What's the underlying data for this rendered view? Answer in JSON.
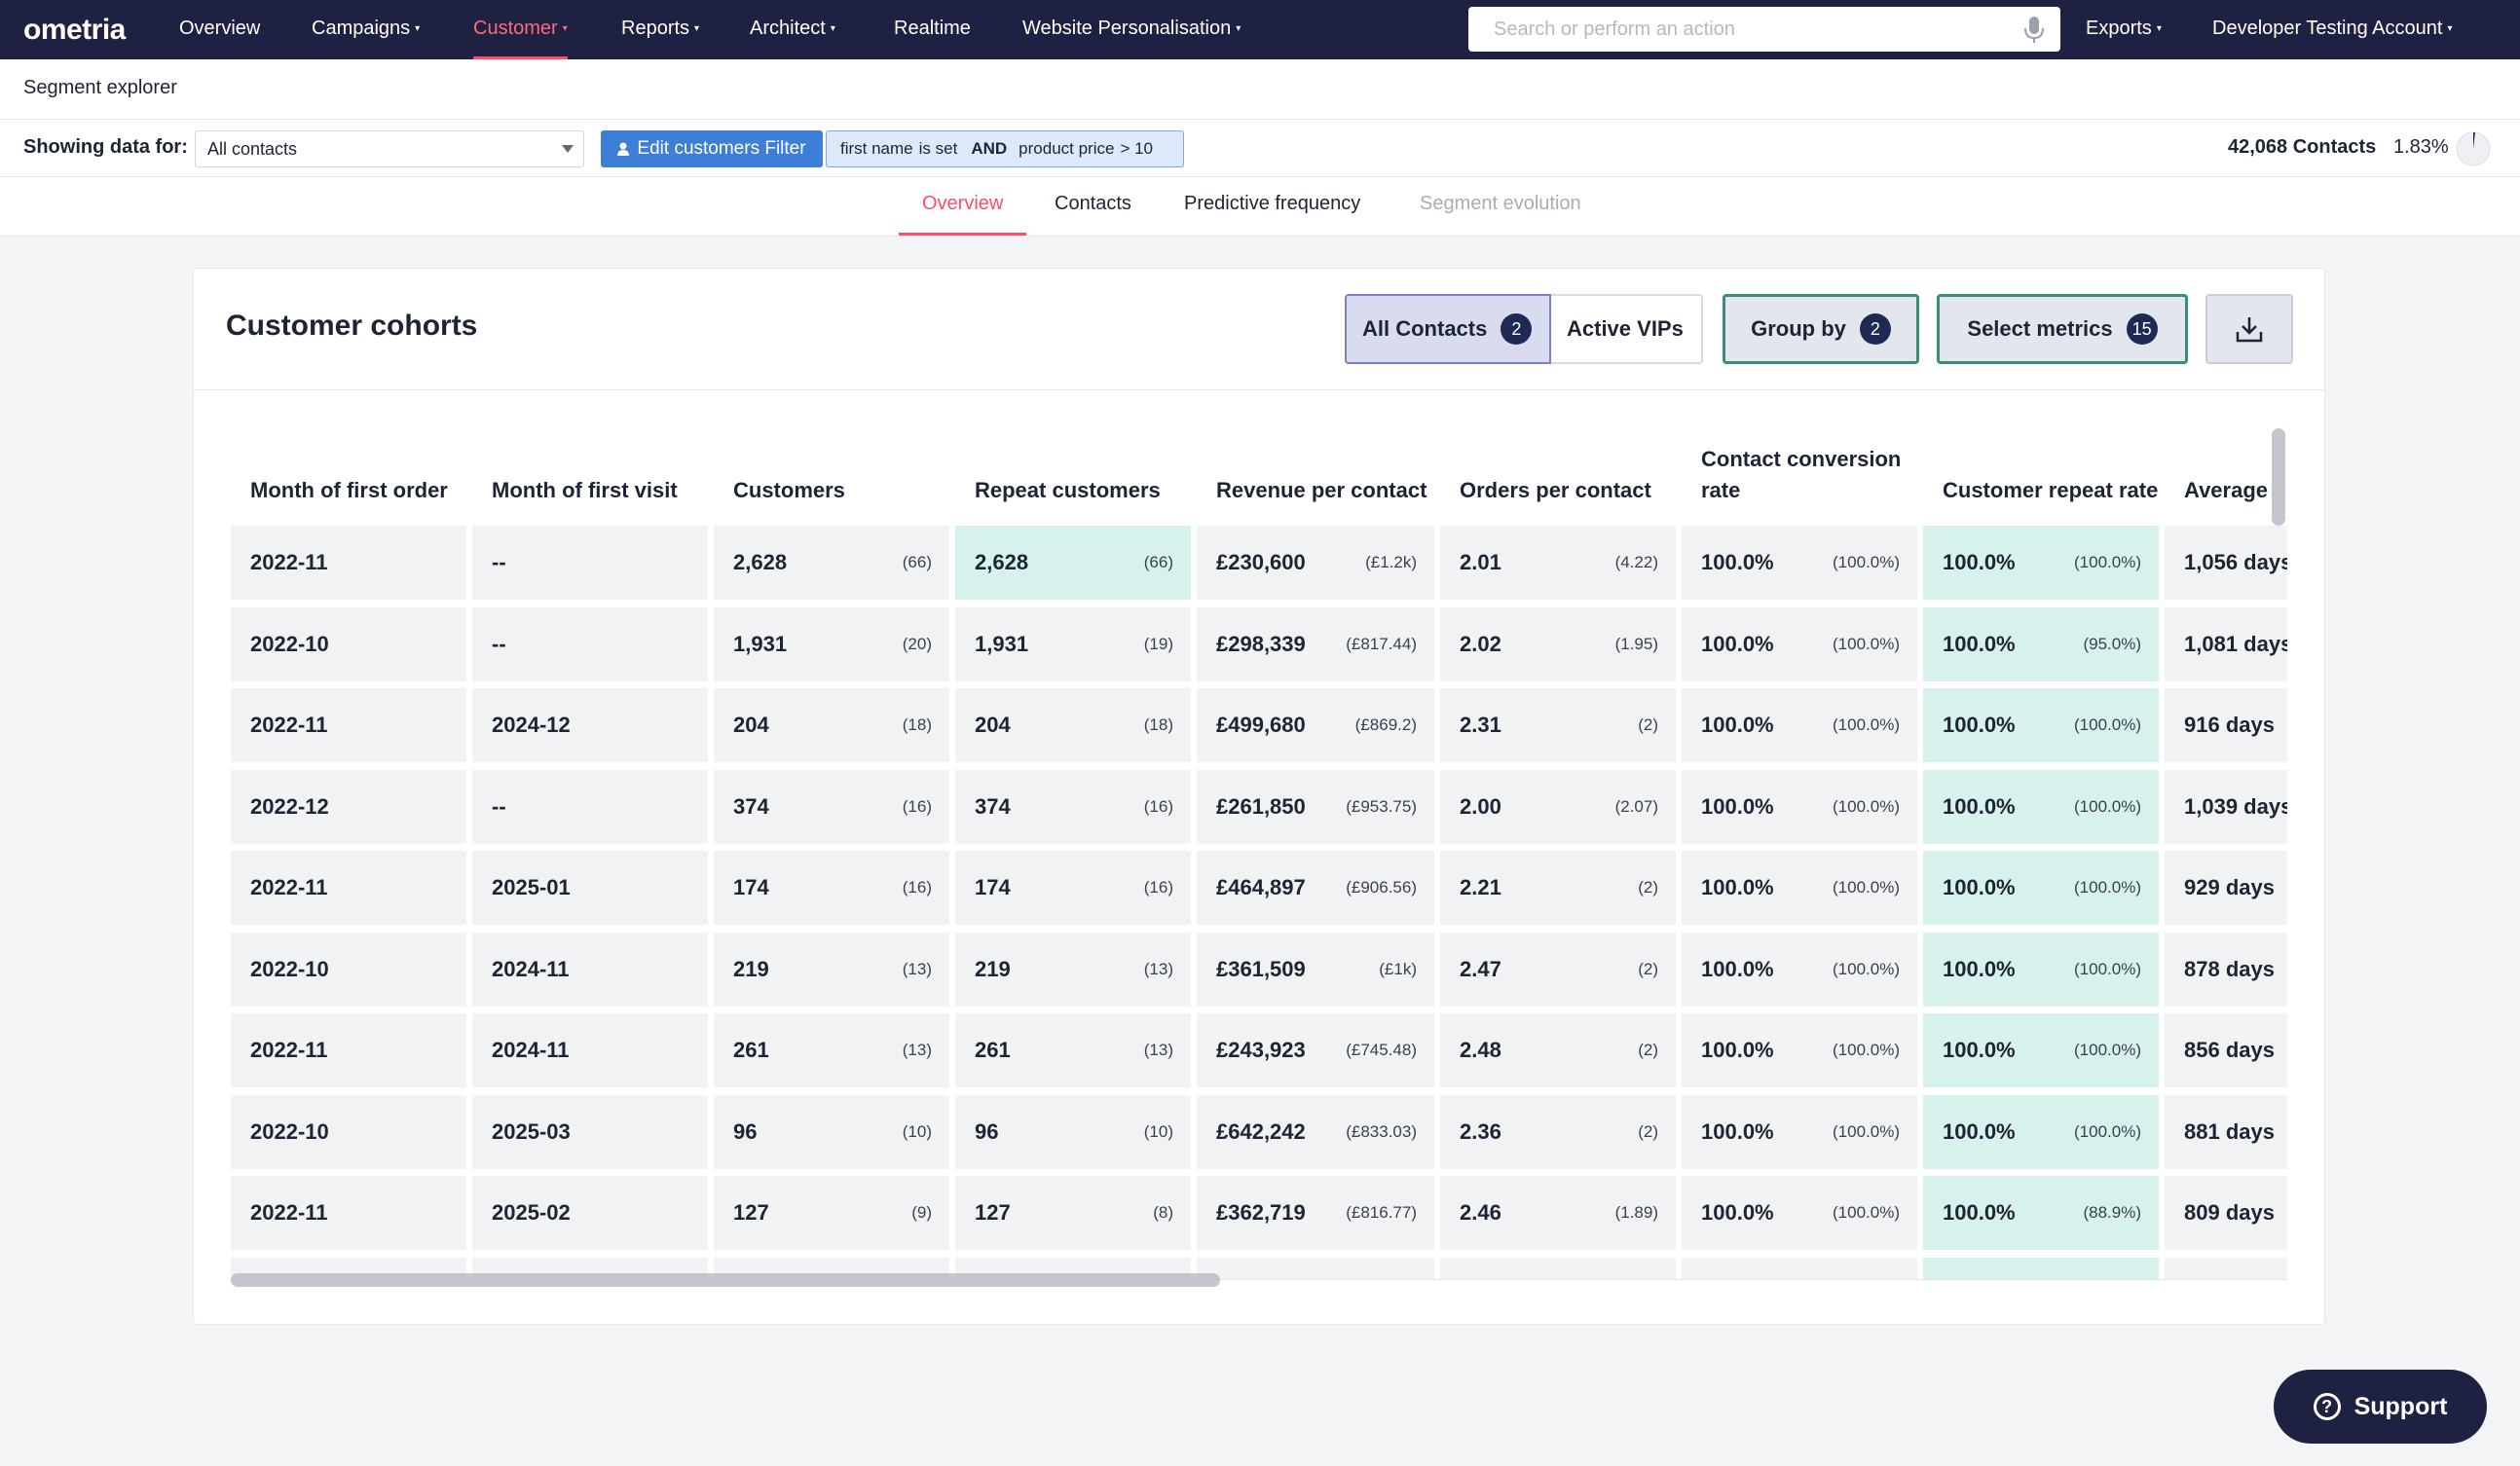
{
  "brand": {
    "logo_text": "ometria",
    "nav_bg": "#1e2141",
    "accent": "#ff4d63"
  },
  "topnav": {
    "items": [
      {
        "label": "Overview",
        "caret": false
      },
      {
        "label": "Campaigns",
        "caret": true
      },
      {
        "label": "Customer",
        "caret": true,
        "active": true
      },
      {
        "label": "Reports",
        "caret": true
      },
      {
        "label": "Architect",
        "caret": true
      },
      {
        "label": "Realtime",
        "caret": false
      },
      {
        "label": "Website Personalisation",
        "caret": true
      }
    ],
    "search_placeholder": "Search or perform an action",
    "exports_label": "Exports",
    "account_label": "Developer Testing Account"
  },
  "subheader": {
    "title": "Segment explorer"
  },
  "filterbar": {
    "label": "Showing data for:",
    "select_value": "All contacts",
    "edit_button": "Edit customers Filter",
    "filter_parts": [
      "first name",
      "is set",
      "AND",
      "product price",
      "> 10"
    ],
    "contacts_count": "42,068 Contacts",
    "percent": "1.83%",
    "percent_value": 0.0183
  },
  "tabs": [
    {
      "label": "Overview",
      "state": "active"
    },
    {
      "label": "Contacts",
      "state": "normal"
    },
    {
      "label": "Predictive frequency",
      "state": "normal"
    },
    {
      "label": "Segment evolution",
      "state": "disabled"
    }
  ],
  "card": {
    "title": "Customer cohorts",
    "segments": [
      {
        "label": "All Contacts",
        "badge": "2",
        "selected": true
      },
      {
        "label": "Active VIPs",
        "badge": "",
        "selected": false
      }
    ],
    "group_by": {
      "label": "Group by",
      "badge": "2"
    },
    "select_metrics": {
      "label": "Select metrics",
      "badge": "15"
    },
    "download_icon": "download-icon"
  },
  "table": {
    "headers": [
      "Month of first order",
      "Month of first visit",
      "Customers",
      "Repeat customers",
      "Revenue per contact",
      "Orders per contact",
      "Contact conversion rate",
      "Customer repeat rate",
      "Average"
    ],
    "rows": [
      [
        "2022-11",
        "--",
        [
          "2,628",
          "(66)"
        ],
        [
          "2,628",
          "(66)"
        ],
        [
          "£230,600",
          "(£1.2k)"
        ],
        [
          "2.01",
          "(4.22)"
        ],
        [
          "100.0%",
          "(100.0%)"
        ],
        [
          "100.0%",
          "(100.0%)"
        ],
        "1,056 days"
      ],
      [
        "2022-10",
        "--",
        [
          "1,931",
          "(20)"
        ],
        [
          "1,931",
          "(19)"
        ],
        [
          "£298,339",
          "(£817.44)"
        ],
        [
          "2.02",
          "(1.95)"
        ],
        [
          "100.0%",
          "(100.0%)"
        ],
        [
          "100.0%",
          "(95.0%)"
        ],
        "1,081 days"
      ],
      [
        "2022-11",
        "2024-12",
        [
          "204",
          "(18)"
        ],
        [
          "204",
          "(18)"
        ],
        [
          "£499,680",
          "(£869.2)"
        ],
        [
          "2.31",
          "(2)"
        ],
        [
          "100.0%",
          "(100.0%)"
        ],
        [
          "100.0%",
          "(100.0%)"
        ],
        "916 days"
      ],
      [
        "2022-12",
        "--",
        [
          "374",
          "(16)"
        ],
        [
          "374",
          "(16)"
        ],
        [
          "£261,850",
          "(£953.75)"
        ],
        [
          "2.00",
          "(2.07)"
        ],
        [
          "100.0%",
          "(100.0%)"
        ],
        [
          "100.0%",
          "(100.0%)"
        ],
        "1,039 days"
      ],
      [
        "2022-11",
        "2025-01",
        [
          "174",
          "(16)"
        ],
        [
          "174",
          "(16)"
        ],
        [
          "£464,897",
          "(£906.56)"
        ],
        [
          "2.21",
          "(2)"
        ],
        [
          "100.0%",
          "(100.0%)"
        ],
        [
          "100.0%",
          "(100.0%)"
        ],
        "929 days"
      ],
      [
        "2022-10",
        "2024-11",
        [
          "219",
          "(13)"
        ],
        [
          "219",
          "(13)"
        ],
        [
          "£361,509",
          "(£1k)"
        ],
        [
          "2.47",
          "(2)"
        ],
        [
          "100.0%",
          "(100.0%)"
        ],
        [
          "100.0%",
          "(100.0%)"
        ],
        "878 days"
      ],
      [
        "2022-11",
        "2024-11",
        [
          "261",
          "(13)"
        ],
        [
          "261",
          "(13)"
        ],
        [
          "£243,923",
          "(£745.48)"
        ],
        [
          "2.48",
          "(2)"
        ],
        [
          "100.0%",
          "(100.0%)"
        ],
        [
          "100.0%",
          "(100.0%)"
        ],
        "856 days"
      ],
      [
        "2022-10",
        "2025-03",
        [
          "96",
          "(10)"
        ],
        [
          "96",
          "(10)"
        ],
        [
          "£642,242",
          "(£833.03)"
        ],
        [
          "2.36",
          "(2)"
        ],
        [
          "100.0%",
          "(100.0%)"
        ],
        [
          "100.0%",
          "(100.0%)"
        ],
        "881 days"
      ],
      [
        "2022-11",
        "2025-02",
        [
          "127",
          "(9)"
        ],
        [
          "127",
          "(8)"
        ],
        [
          "£362,719",
          "(£816.77)"
        ],
        [
          "2.46",
          "(1.89)"
        ],
        [
          "100.0%",
          "(100.0%)"
        ],
        [
          "100.0%",
          "(88.9%)"
        ],
        "809 days"
      ]
    ],
    "highlight_first_repeat_row": true,
    "teal": "#d7f1ec"
  },
  "support": {
    "label": "Support",
    "icon": "question-icon"
  }
}
